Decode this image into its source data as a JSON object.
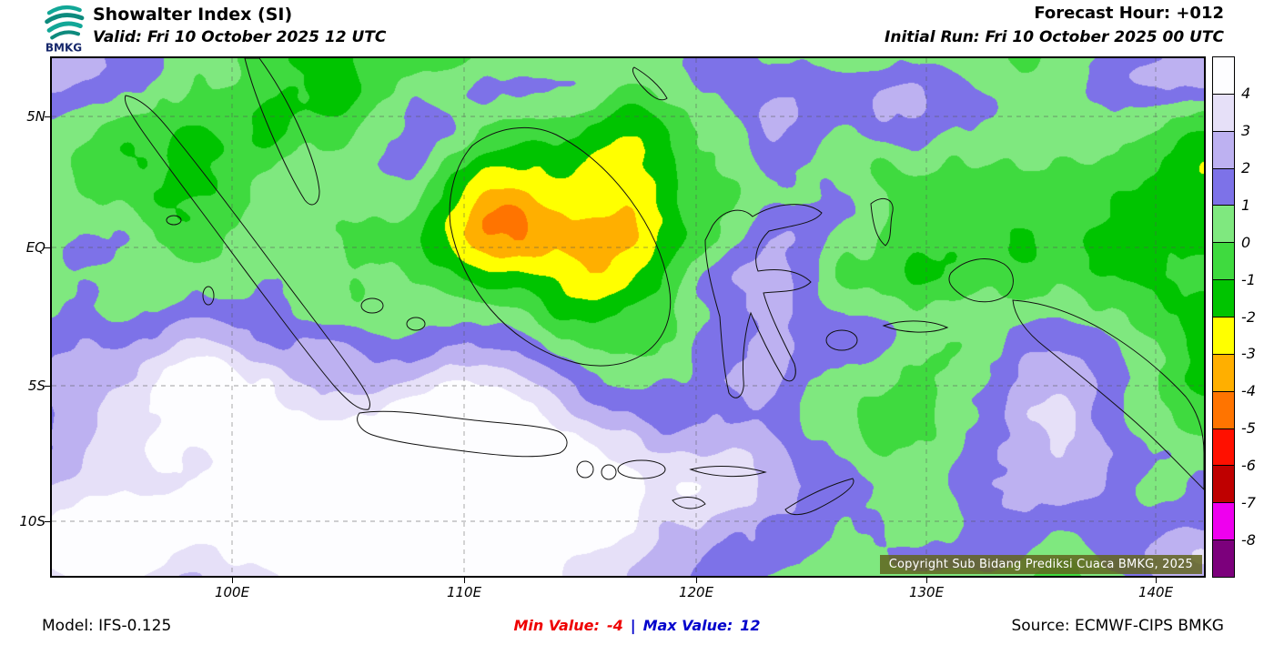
{
  "header": {
    "logo_text": "BMKG",
    "title": "Showalter Index (SI)",
    "valid": "Valid: Fri 10 October 2025 12 UTC",
    "forecast_hour": "Forecast Hour: +012",
    "initial_run": "Initial Run: Fri 10 October 2025 00 UTC"
  },
  "map": {
    "copyright": "Copyright Sub Bidang Prediksi Cuaca BMKG, 2025",
    "x_tick_labels": [
      "100E",
      "110E",
      "120E",
      "130E",
      "140E"
    ],
    "y_tick_labels": [
      "5N",
      "EQ",
      "5S",
      "10S"
    ]
  },
  "footer": {
    "model": "Model: IFS-0.125",
    "min_label": "Min Value:",
    "min_value": "-4",
    "separator": "|",
    "max_label": "Max Value:",
    "max_value": "12",
    "source": "Source: ECMWF-CIPS BMKG",
    "min_color": "#ee0000",
    "max_color": "#0000cc"
  },
  "chart_data": {
    "type": "heatmap",
    "title": "Showalter Index (SI)",
    "valid_time": "Fri 10 October 2025 12 UTC",
    "initial_run": "Fri 10 October 2025 00 UTC",
    "forecast_hour": "+012",
    "model": "IFS-0.125",
    "source": "ECMWF-CIPS BMKG",
    "min_value": -4,
    "max_value": 12,
    "x_ticks": [
      "100E",
      "110E",
      "120E",
      "130E",
      "140E"
    ],
    "y_ticks": [
      "5N",
      "EQ",
      "5S",
      "10S"
    ],
    "legend": {
      "boundaries": [
        4,
        3,
        2,
        1,
        0,
        -1,
        -2,
        -3,
        -4,
        -5,
        -6,
        -7,
        -8
      ],
      "colors_top_to_bottom": [
        "#fdfdff",
        "#e6e0f8",
        "#bdb1f1",
        "#7d72e8",
        "#7fe87f",
        "#3fda3f",
        "#00c400",
        "#ffff00",
        "#ffaf00",
        "#ff7400",
        "#ff1000",
        "#bf0000",
        "#ee00ee",
        "#7c007c"
      ],
      "field_summary": "Mostly 0 to -2 (greens) over the Indonesian region; -2 to -3 (yellow) pockets over central Kalimantan; values 1 to >4 (purples to pale lavender) over the Java Sea, waters south of Sumatra-Java and scattered seas"
    }
  }
}
